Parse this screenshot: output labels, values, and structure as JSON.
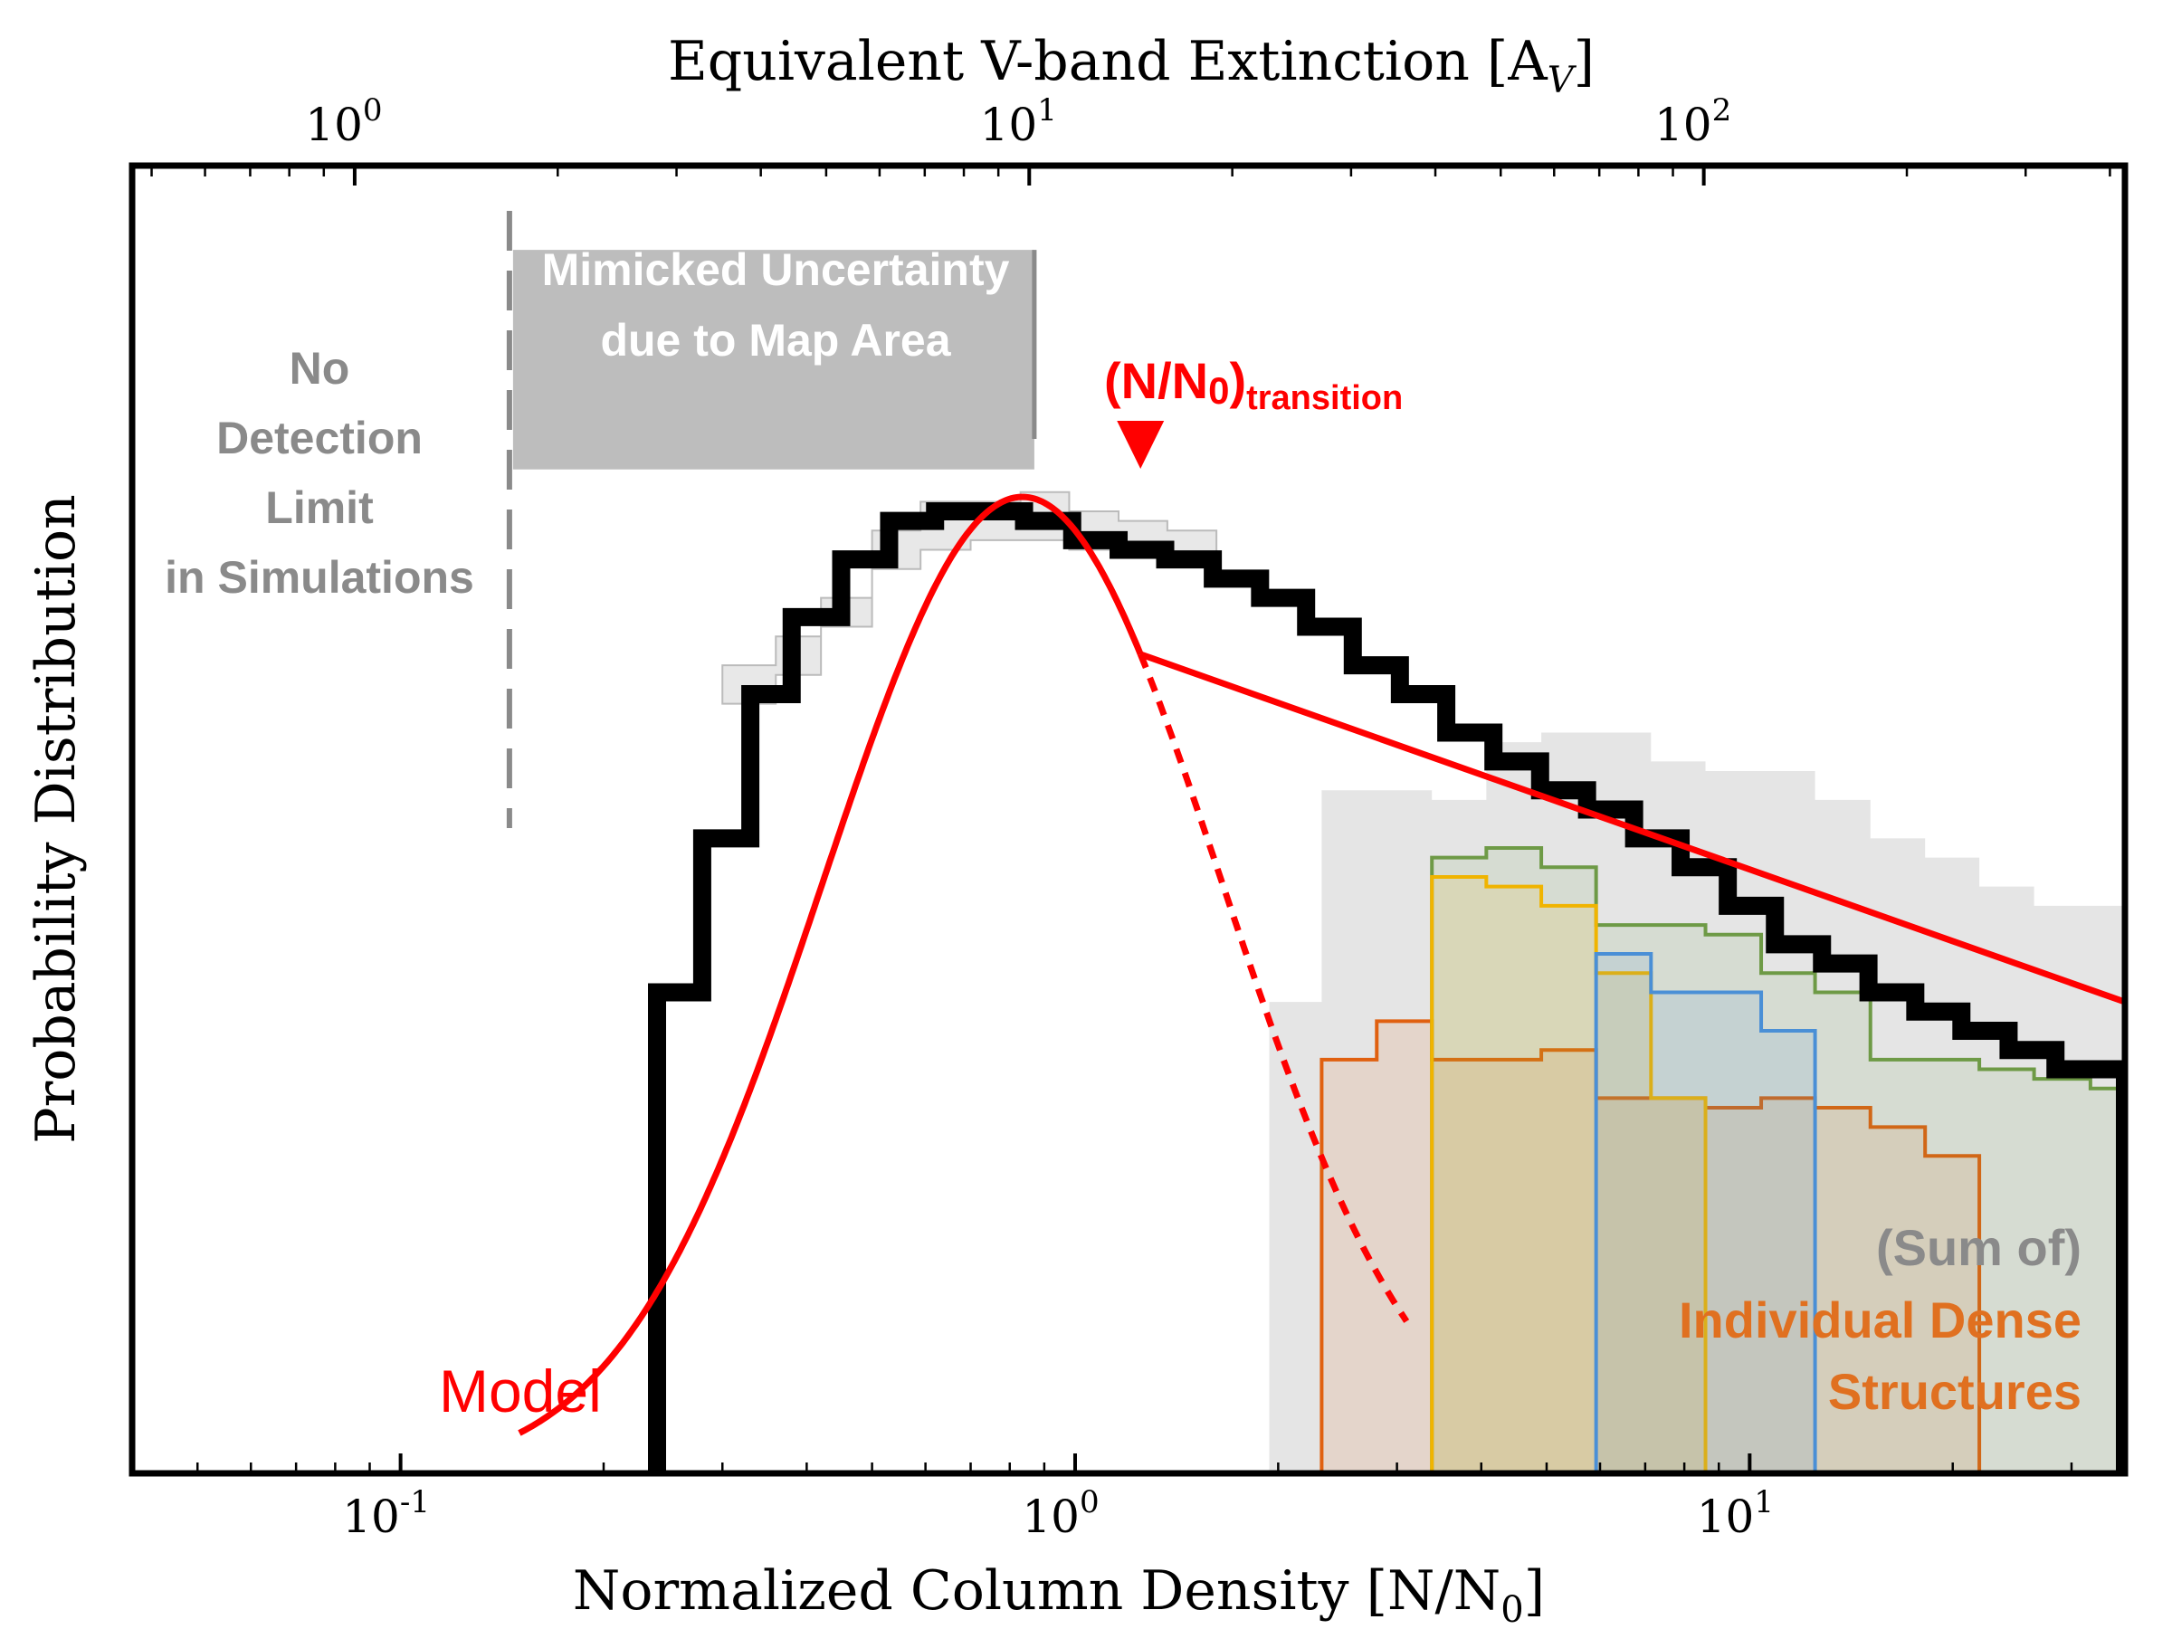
{
  "chart_data": {
    "type": "histogram",
    "xlabel": "Normalized Column Density [N/N",
    "xlabel_sub": "0",
    "xlabel_close": "]",
    "ylabel": "Probability Distribution",
    "top_axis_label": "Equivalent V-band Extinction [A",
    "top_axis_label_sub": "V",
    "top_axis_label_close": "]",
    "x_scale": "log",
    "xlim": [
      0.04,
      36
    ],
    "ylim": [
      0,
      1
    ],
    "x_ticks": [
      {
        "value": 0.1,
        "base": "10",
        "exp": "-1"
      },
      {
        "value": 1,
        "base": "10",
        "exp": "0"
      },
      {
        "value": 10,
        "base": "10",
        "exp": "1"
      }
    ],
    "top_ticks": [
      {
        "value": 0.0855,
        "base": "10",
        "exp": "0"
      },
      {
        "value": 0.855,
        "base": "10",
        "exp": "1"
      },
      {
        "value": 8.55,
        "base": "10",
        "exp": "2"
      }
    ],
    "colors": {
      "total": "#000000",
      "model": "#ff0000",
      "sum_region": "#e0e0e0",
      "green": "#6e9a46",
      "yellow": "#f0b400",
      "blue": "#4a8fd6",
      "orange": "#e06010",
      "annot_gray": "#8a8a8a"
    },
    "total_pdf": {
      "bin_edges": [
        0.24,
        0.28,
        0.33,
        0.38,
        0.45,
        0.53,
        0.62,
        0.72,
        0.84,
        0.99,
        1.16,
        1.36,
        1.6,
        1.88,
        2.2,
        2.58,
        3.03,
        3.55,
        4.17,
        4.89,
        5.74,
        6.74,
        7.9,
        9.28,
        10.9,
        12.8,
        15.0,
        17.6,
        20.6,
        24.2,
        28.4,
        36.0
      ],
      "values": [
        0.5,
        0.66,
        0.81,
        0.89,
        0.95,
        0.99,
        1.0,
        1.0,
        0.99,
        0.97,
        0.96,
        0.95,
        0.93,
        0.91,
        0.88,
        0.84,
        0.81,
        0.77,
        0.74,
        0.71,
        0.69,
        0.66,
        0.63,
        0.59,
        0.55,
        0.53,
        0.5,
        0.48,
        0.46,
        0.44,
        0.42
      ]
    },
    "gray_band": {
      "bin_edges": [
        0.3,
        0.36,
        0.42,
        0.5,
        0.59,
        0.7,
        0.83,
        0.98,
        1.16,
        1.37,
        1.62
      ],
      "lower": [
        0.8,
        0.83,
        0.88,
        0.94,
        0.96,
        0.97,
        0.97,
        0.96,
        0.96,
        0.95
      ],
      "upper": [
        0.84,
        0.87,
        0.91,
        0.98,
        1.01,
        1.01,
        1.02,
        1.0,
        0.99,
        0.98
      ]
    },
    "sum_region": {
      "bin_edges": [
        1.94,
        2.32,
        2.8,
        3.38,
        4.07,
        4.91,
        5.92,
        7.14,
        8.6,
        10.4,
        12.5,
        15.1,
        18.2,
        21.9,
        26.4,
        36.0
      ],
      "values": [
        0.49,
        0.71,
        0.71,
        0.7,
        0.76,
        0.77,
        0.77,
        0.74,
        0.73,
        0.73,
        0.7,
        0.66,
        0.64,
        0.61,
        0.59
      ]
    },
    "structures": [
      {
        "name": "orange",
        "bin_edges": [
          2.32,
          2.8,
          3.38,
          4.07,
          4.91,
          5.92,
          7.14,
          8.6,
          10.4,
          12.5,
          15.1,
          18.2,
          21.9
        ],
        "values": [
          0.43,
          0.47,
          0.43,
          0.43,
          0.44,
          0.39,
          0.39,
          0.38,
          0.39,
          0.38,
          0.36,
          0.33
        ]
      },
      {
        "name": "green",
        "bin_edges": [
          3.38,
          4.07,
          4.91,
          5.92,
          7.14,
          8.6,
          10.4,
          12.5,
          15.1,
          18.2,
          21.9,
          26.4,
          32.0,
          36.0
        ],
        "values": [
          0.64,
          0.65,
          0.63,
          0.57,
          0.57,
          0.56,
          0.52,
          0.5,
          0.43,
          0.43,
          0.42,
          0.41,
          0.4
        ]
      },
      {
        "name": "yellow",
        "bin_edges": [
          3.38,
          4.07,
          4.91,
          5.92,
          7.14,
          8.6
        ],
        "values": [
          0.62,
          0.61,
          0.59,
          0.52,
          0.39
        ]
      },
      {
        "name": "blue",
        "bin_edges": [
          5.92,
          7.14,
          8.6,
          10.4,
          12.5
        ],
        "values": [
          0.54,
          0.5,
          0.5,
          0.46
        ]
      }
    ],
    "model": {
      "lognormal_mu": -0.18,
      "lognormal_sigma": 0.68,
      "peak_value": 1.015,
      "x_transition": 1.25,
      "powerlaw_end": [
        36.0,
        0.49
      ],
      "lognormal_dashed_to": 3.1
    },
    "detection_limit_x": 0.145,
    "uncertainty_box": {
      "x_from": 0.145,
      "x_to": 0.87,
      "y_from": 1.1,
      "y_to": 1.3
    },
    "transition_marker_x": 1.25,
    "annotations": {
      "no_detection": [
        "No",
        "Detection",
        "Limit",
        "in Simulations"
      ],
      "mimicked": [
        "Mimicked Uncertainty",
        "due to Map Area"
      ],
      "transition_main": "(N/N",
      "transition_sub0": "0",
      "transition_close": ")",
      "transition_sub": "transition",
      "model_label": "Model",
      "sum_of": "(Sum of)",
      "individual_dense": [
        "Individual Dense",
        "Structures"
      ]
    }
  }
}
